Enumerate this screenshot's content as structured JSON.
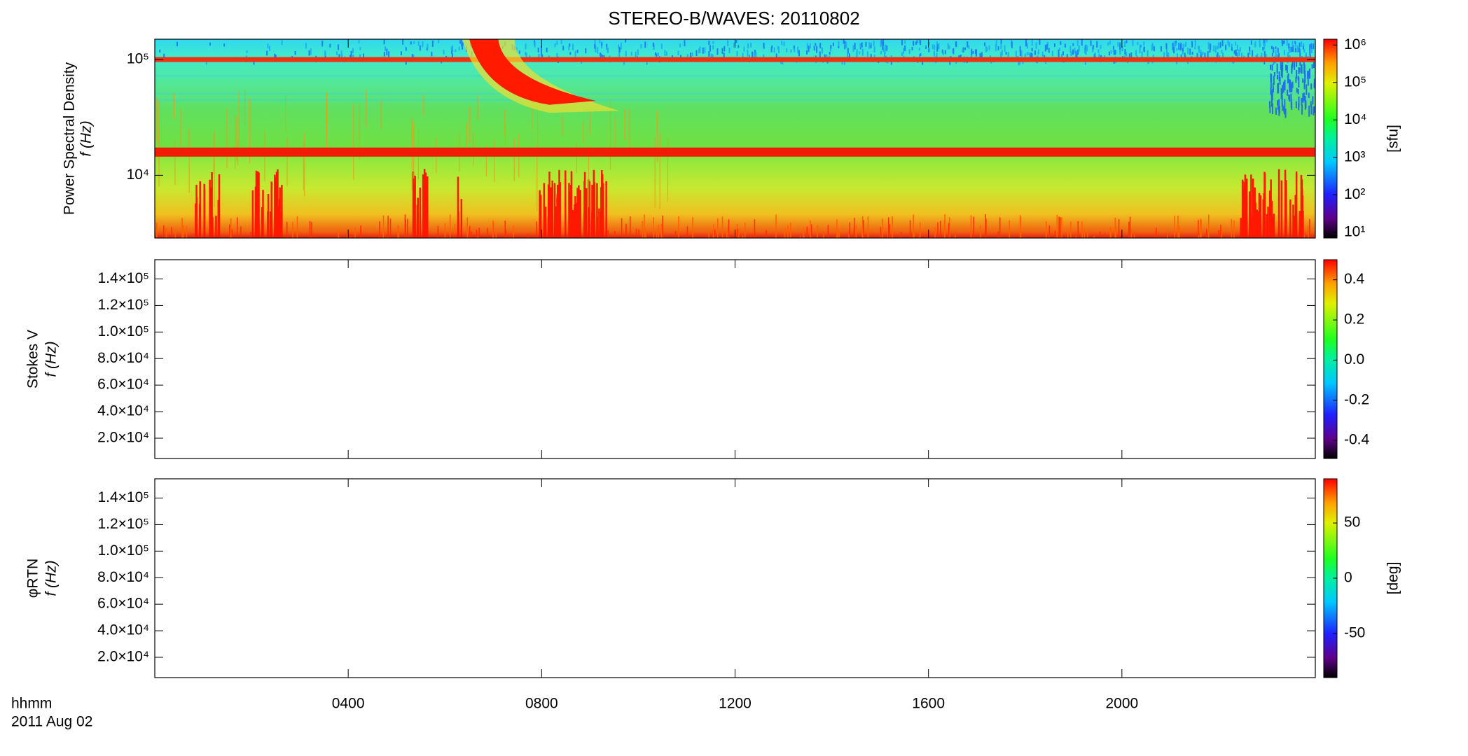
{
  "title": "STEREO-B/WAVES: 20110802",
  "x_label": "hhmm",
  "date_label": "2011 Aug 02",
  "chart_data": [
    {
      "type": "heatmap",
      "ylabel": [
        "Power Spectral Density",
        "f (Hz)"
      ],
      "ylog": true,
      "ylim": [
        2870,
        150000
      ],
      "yticks": [
        {
          "value": 10000,
          "label": "10⁴"
        },
        {
          "value": 100000,
          "label": "10⁵"
        }
      ],
      "colorbar": {
        "log": true,
        "clim": [
          7,
          1430000
        ],
        "label": "[sfu]",
        "ticks": [
          {
            "value": 10,
            "label": "10¹"
          },
          {
            "value": 100,
            "label": "10²"
          },
          {
            "value": 1000,
            "label": "10³"
          },
          {
            "value": 10000,
            "label": "10⁴"
          },
          {
            "value": 100000,
            "label": "10⁵"
          },
          {
            "value": 1000000,
            "label": "10⁶"
          }
        ]
      }
    },
    {
      "type": "heatmap",
      "ylabel": [
        "Stokes V",
        "f (Hz)"
      ],
      "ylog": false,
      "ylim": [
        4700,
        154500
      ],
      "yticks": [
        {
          "value": 20000,
          "label": "2.0×10⁴"
        },
        {
          "value": 40000,
          "label": "4.0×10⁴"
        },
        {
          "value": 60000,
          "label": "6.0×10⁴"
        },
        {
          "value": 80000,
          "label": "8.0×10⁴"
        },
        {
          "value": 100000,
          "label": "1.0×10⁵"
        },
        {
          "value": 120000,
          "label": "1.2×10⁵"
        },
        {
          "value": 140000,
          "label": "1.4×10⁵"
        }
      ],
      "colorbar": {
        "log": false,
        "clim": [
          -0.49,
          0.5
        ],
        "ticks": [
          -0.4,
          -0.2,
          {
            "value": 0,
            "label": "0.0"
          },
          0.2,
          0.4
        ]
      }
    },
    {
      "type": "heatmap",
      "ylabel": [
        "φRTN",
        "f (Hz)"
      ],
      "ylog": false,
      "ylim": [
        4700,
        154500
      ],
      "yticks": [
        {
          "value": 20000,
          "label": "2.0×10⁴"
        },
        {
          "value": 40000,
          "label": "4.0×10⁴"
        },
        {
          "value": 60000,
          "label": "6.0×10⁴"
        },
        {
          "value": 80000,
          "label": "8.0×10⁴"
        },
        {
          "value": 100000,
          "label": "1.0×10⁵"
        },
        {
          "value": 120000,
          "label": "1.2×10⁵"
        },
        {
          "value": 140000,
          "label": "1.4×10⁵"
        }
      ],
      "xlim": [
        0,
        24
      ],
      "xticks": [
        {
          "value": 4,
          "label": "0400"
        },
        {
          "value": 8,
          "label": "0800"
        },
        {
          "value": 12,
          "label": "1200"
        },
        {
          "value": 16,
          "label": "1600"
        },
        {
          "value": 20,
          "label": "2000"
        }
      ],
      "colorbar": {
        "log": false,
        "clim": [
          -90,
          90
        ],
        "label": "[deg]",
        "ticks": [
          -50,
          0,
          50
        ]
      }
    }
  ]
}
